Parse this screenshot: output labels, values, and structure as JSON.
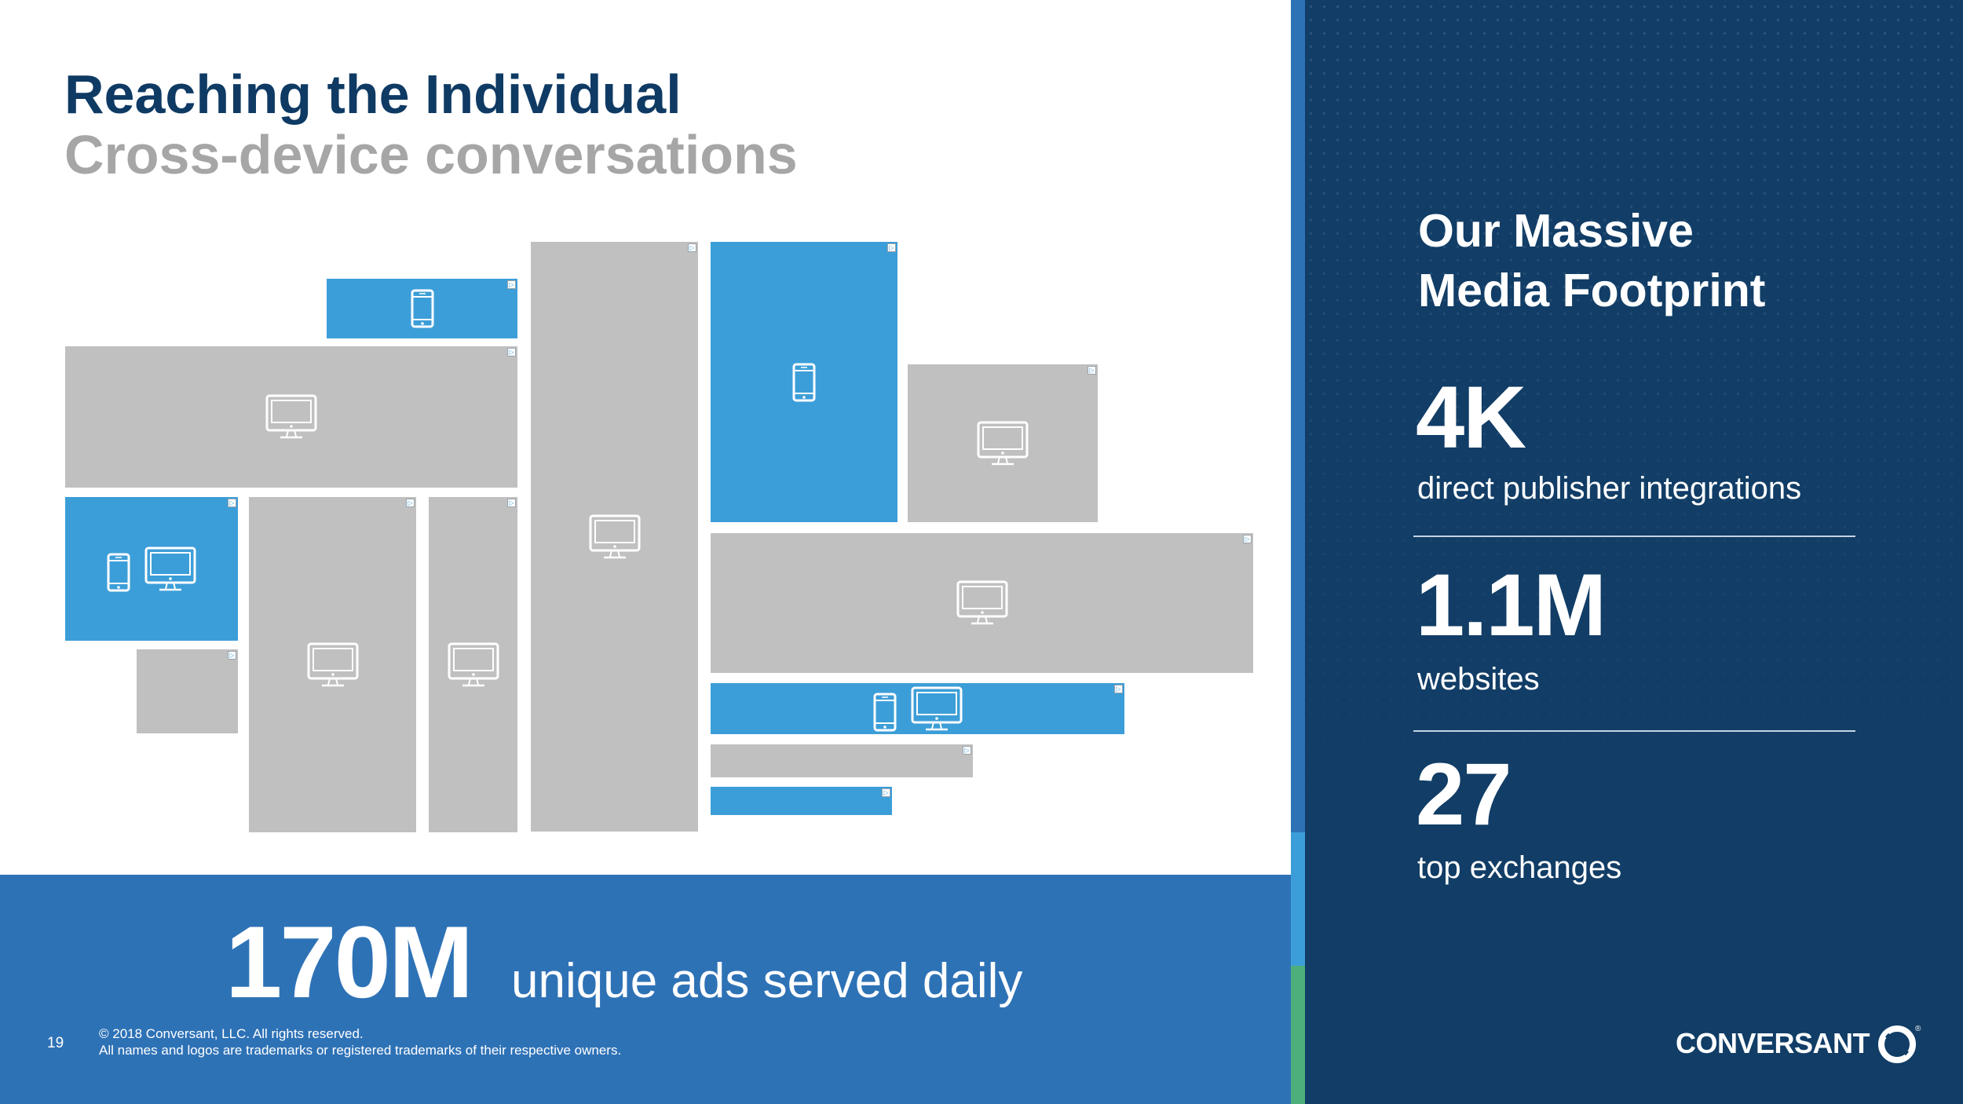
{
  "slide": {
    "title": "Reaching the Individual",
    "subtitle": "Cross-device conversations"
  },
  "tiles": [
    {
      "color": "blue",
      "icons": [
        "phone-icon"
      ]
    },
    {
      "color": "gray",
      "icons": [
        "monitor-icon"
      ]
    },
    {
      "color": "blue",
      "icons": [
        "phone-icon",
        "monitor-icon"
      ]
    },
    {
      "color": "gray",
      "icons": []
    },
    {
      "color": "gray",
      "icons": [
        "monitor-icon"
      ]
    },
    {
      "color": "gray",
      "icons": [
        "monitor-icon"
      ]
    },
    {
      "color": "gray",
      "icons": [
        "monitor-icon"
      ]
    },
    {
      "color": "blue",
      "icons": [
        "phone-icon"
      ]
    },
    {
      "color": "gray",
      "icons": [
        "monitor-icon"
      ]
    },
    {
      "color": "gray",
      "icons": [
        "monitor-icon"
      ]
    },
    {
      "color": "blue",
      "icons": [
        "phone-icon",
        "monitor-icon"
      ]
    },
    {
      "color": "gray",
      "icons": []
    },
    {
      "color": "blue",
      "icons": []
    }
  ],
  "footer_banner": {
    "number": "170M",
    "label": "unique ads served daily"
  },
  "footer": {
    "page_number": "19",
    "copyright": "© 2018 Conversant, LLC. All rights reserved.",
    "trademark": "All names and logos are trademarks or registered trademarks of their respective owners."
  },
  "panel": {
    "heading_line1": "Our Massive",
    "heading_line2": "Media Footprint",
    "stats": [
      {
        "value": "4K",
        "label": "direct publisher integrations"
      },
      {
        "value": "1.1M",
        "label": "websites"
      },
      {
        "value": "27",
        "label": "top exchanges"
      }
    ]
  },
  "logo": {
    "text": "CONVERSANT",
    "mark": "®"
  },
  "colors": {
    "navy": "#113d66",
    "title_blue": "#0e3a64",
    "banner_blue": "#2e72b6",
    "tile_blue": "#3c9ed8",
    "tile_gray": "#c0c0c0",
    "accent_green": "#4daf7c"
  }
}
